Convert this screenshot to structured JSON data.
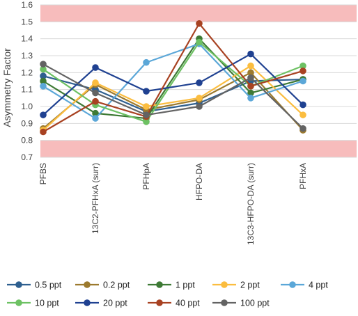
{
  "chart_data": {
    "type": "line",
    "title": "",
    "xlabel": "",
    "ylabel": "Asymmetry Factor",
    "ylim": [
      0.7,
      1.6
    ],
    "yticks": [
      "0.7",
      "0.8",
      "0.9",
      "1.0",
      "1.1",
      "1.2",
      "1.3",
      "1.4",
      "1.5",
      "1.6"
    ],
    "categories": [
      "PFBS",
      "13C2-PFHxA (surr)",
      "PFHpA",
      "HFPO-DA",
      "13C3-HFPO-DA (surr)",
      "PFHxA"
    ],
    "acceptance_band": {
      "upper_limit": 1.5,
      "lower_limit": 0.8,
      "shade_color": "#f7bcbc",
      "meaning": "out-of-range regions shaded above 1.5 and below 0.8"
    },
    "grid": "horizontal",
    "legend_position": "bottom",
    "series": [
      {
        "name": "0.5 ppt",
        "color": "#2e5f8f",
        "values": [
          1.18,
          1.1,
          0.97,
          1.02,
          1.15,
          1.16
        ]
      },
      {
        "name": "0.2 ppt",
        "color": "#9c7a2e",
        "values": [
          0.87,
          1.13,
          0.98,
          1.04,
          1.2,
          0.86
        ]
      },
      {
        "name": "1 ppt",
        "color": "#3e7a35",
        "values": [
          1.15,
          0.96,
          0.93,
          1.4,
          1.08,
          1.16
        ]
      },
      {
        "name": "2 ppt",
        "color": "#fbbd3f",
        "values": [
          0.86,
          1.14,
          1.0,
          1.05,
          1.24,
          0.95
        ]
      },
      {
        "name": "4 ppt",
        "color": "#5ba7d8",
        "values": [
          1.12,
          0.93,
          1.26,
          1.37,
          1.05,
          1.15
        ]
      },
      {
        "name": "10 ppt",
        "color": "#6dc163",
        "values": [
          1.22,
          1.01,
          0.91,
          1.38,
          1.12,
          1.24
        ]
      },
      {
        "name": "20 ppt",
        "color": "#1f4191",
        "values": [
          0.95,
          1.23,
          1.09,
          1.14,
          1.31,
          1.01
        ]
      },
      {
        "name": "40 ppt",
        "color": "#a84222",
        "values": [
          0.85,
          1.03,
          0.94,
          1.49,
          1.12,
          1.21
        ]
      },
      {
        "name": "100 ppt",
        "color": "#636363",
        "values": [
          1.25,
          1.08,
          0.95,
          1.0,
          1.17,
          0.87
        ]
      }
    ]
  }
}
